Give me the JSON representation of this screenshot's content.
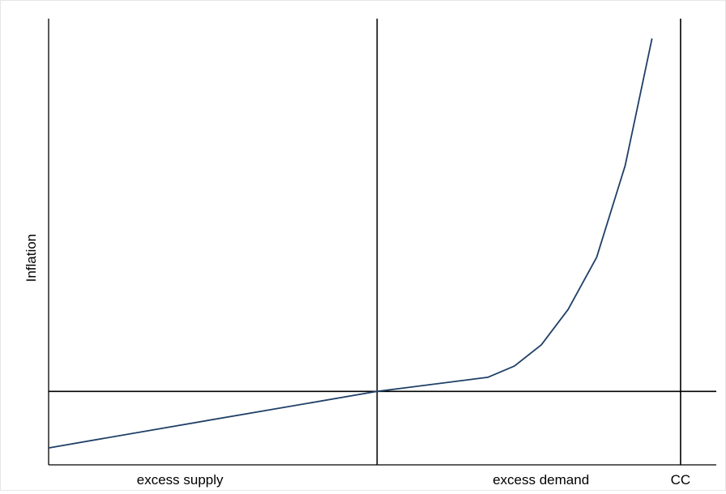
{
  "chart_data": {
    "type": "line",
    "title": "",
    "xlabel": "",
    "ylabel": "Inflation",
    "x_tick_labels": [
      "excess supply",
      "excess demand",
      "CC"
    ],
    "series": [
      {
        "name": "",
        "color": "#1f3f66",
        "x": [
          -9.2,
          -6.0,
          -3.0,
          0.0,
          3.1,
          3.85,
          4.6,
          5.35,
          6.15,
          6.95,
          7.7
        ],
        "y": [
          0.6,
          1.3,
          1.95,
          2.6,
          3.1,
          3.5,
          4.25,
          5.5,
          7.35,
          10.6,
          15.1
        ]
      }
    ],
    "reference_lines": {
      "vertical": [
        0.0,
        8.5
      ],
      "horizontal": [
        2.6
      ]
    },
    "xlim": [
      -9.2,
      9.5
    ],
    "ylim": [
      0,
      15.8
    ],
    "grid": false,
    "legend": "none",
    "axis_color": "#000000"
  }
}
